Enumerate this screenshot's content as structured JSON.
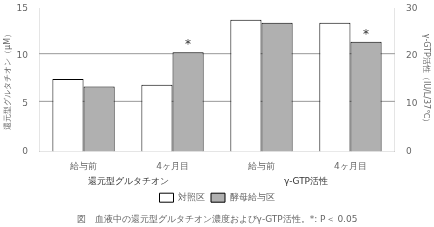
{
  "chart_data": {
    "type": "bar",
    "title": "図　血液中の還元型グルタチオン濃度およびγ-GTP活性。*: P＜ 0.05",
    "categories": [
      "給与前",
      "4ヶ月目",
      "給与前",
      "4ヶ月目"
    ],
    "series": [
      {
        "name": "対照区",
        "color": "#ffffff",
        "values": [
          7.6,
          7.0,
          13.8,
          13.5
        ]
      },
      {
        "name": "酵母給与区",
        "color": "#b0b0b0",
        "values": [
          6.8,
          10.4,
          13.5,
          11.5
        ]
      }
    ],
    "ylabel": "還元型グルタチオン（μM）",
    "y2label": "γ-GTP活性（IU/L/37℃）",
    "ylim": [
      0,
      15
    ],
    "yticks": [
      0,
      5,
      10,
      15
    ],
    "y2lim": [
      0,
      30
    ],
    "y2ticks": [
      0,
      10,
      20,
      30
    ],
    "grid": false,
    "legend": "bottom",
    "reference_lines": [
      5.25,
      10.25
    ],
    "annotations": [
      {
        "text": "*",
        "series": 1,
        "index": 1
      },
      {
        "text": "*",
        "series": 1,
        "index": 3
      },
      {
        "text": "還元型グルタチオン",
        "indices": [
          0,
          1
        ]
      },
      {
        "text": "γ-GTP活性",
        "indices": [
          2,
          3
        ]
      }
    ]
  }
}
